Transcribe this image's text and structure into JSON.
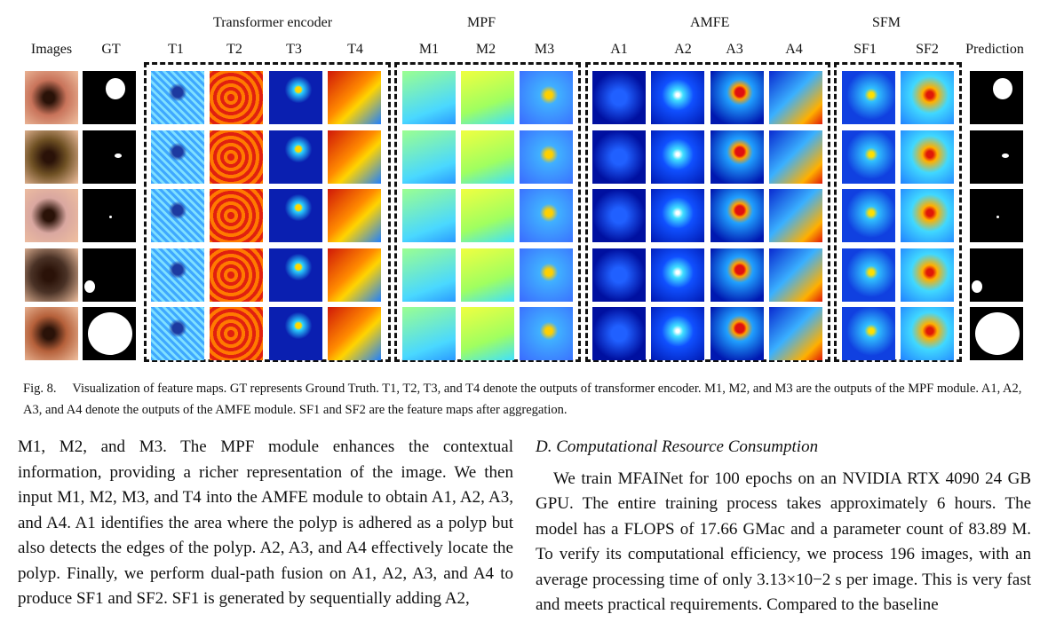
{
  "groups": {
    "transformer": "Transformer encoder",
    "mpf": "MPF",
    "amfe": "AMFE",
    "sfm": "SFM"
  },
  "columns": {
    "images": "Images",
    "gt": "GT",
    "t1": "T1",
    "t2": "T2",
    "t3": "T3",
    "t4": "T4",
    "m1": "M1",
    "m2": "M2",
    "m3": "M3",
    "a1": "A1",
    "a2": "A2",
    "a3": "A3",
    "a4": "A4",
    "sf1": "SF1",
    "sf2": "SF2",
    "prediction": "Prediction"
  },
  "caption": {
    "label": "Fig. 8.",
    "text": "Visualization of feature maps. GT represents Ground Truth. T1, T2, T3, and T4 denote the outputs of transformer encoder. M1, M2, and M3 are the outputs of the MPF module. A1, A2, A3, and A4 denote the outputs of the AMFE module. SF1 and SF2 are the feature maps after aggregation."
  },
  "left_column": {
    "text": "M1, M2, and M3. The MPF module enhances the contextual information, providing a richer representation of the image. We then input M1, M2, M3, and T4 into the AMFE module to obtain A1, A2, A3, and A4. A1 identifies the area where the polyp is adhered as a polyp but also detects the edges of the polyp. A2, A3, and A4 effectively locate the polyp. Finally, we perform dual-path fusion on A1, A2, A3, and A4 to produce SF1 and SF2. SF1 is generated by sequentially adding A2,"
  },
  "right_column": {
    "section_title": "D. Computational Resource Consumption",
    "paragraph": "We train MFAINet for 100 epochs on an NVIDIA RTX 4090 24 GB GPU. The entire training process takes approximately 6 hours. The model has a FLOPS of 17.66 GMac and a parameter count of 83.89 M. To verify its computational efficiency, we process 196 images, with an average processing time of only 3.13×10−2 s per image. This is very fast and meets practical requirements. Compared to the baseline"
  }
}
